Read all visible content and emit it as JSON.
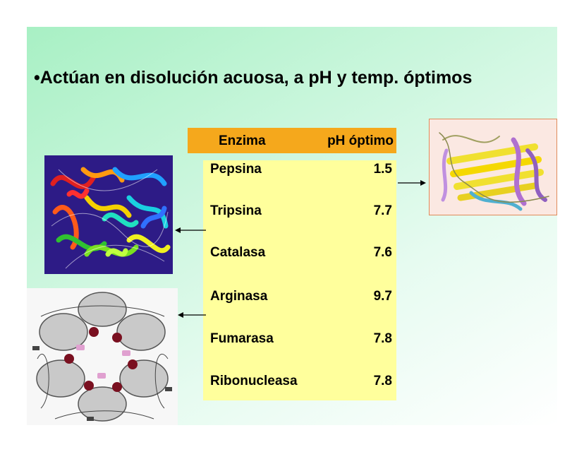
{
  "slide": {
    "headline": "•Actúan en disolución acuosa, a pH y temp. óptimos"
  },
  "table": {
    "headers": {
      "enzyme": "Enzima",
      "ph": "pH óptimo"
    },
    "rows": [
      {
        "name": "Pepsina",
        "ph": "1.5"
      },
      {
        "name": "Tripsina",
        "ph": "7.7"
      },
      {
        "name": "Catalasa",
        "ph": "7.6"
      },
      {
        "name": "Arginasa",
        "ph": "9.7"
      },
      {
        "name": "Fumarasa",
        "ph": "7.8"
      },
      {
        "name": "Ribonucleasa",
        "ph": "7.8"
      }
    ]
  },
  "images": [
    {
      "name": "multicolor-protein-structure"
    },
    {
      "name": "ring-protein-structure"
    },
    {
      "name": "yellow-ribbon-protein-structure"
    }
  ],
  "colors": {
    "header_fill": "#f5a81c",
    "table_fill": "#ffff9c",
    "bg_start": "#a8f0c4"
  }
}
